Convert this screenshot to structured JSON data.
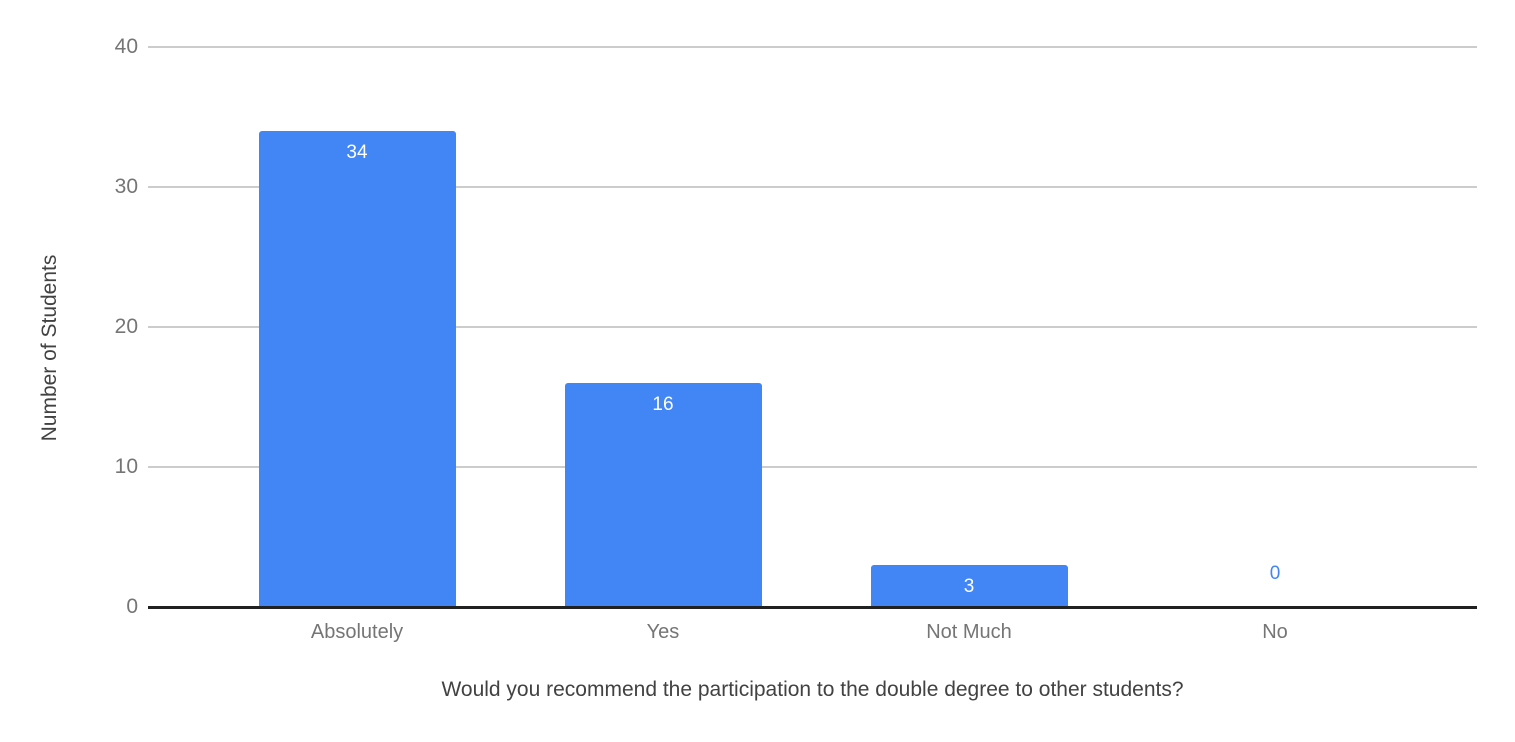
{
  "chart_data": {
    "type": "bar",
    "categories": [
      "Absolutely",
      "Yes",
      "Not Much",
      "No"
    ],
    "values": [
      34,
      16,
      3,
      0
    ],
    "title": "",
    "xlabel": "Would you recommend the participation to the double degree to other students?",
    "ylabel": "Number of Students",
    "y_ticks": [
      0,
      10,
      20,
      30,
      40
    ],
    "ylim": [
      0,
      40
    ],
    "grid": true,
    "legend": "none",
    "colors": {
      "bar": "#4285f4",
      "value_label_inside": "#ffffff",
      "value_label_outside": "#4285f4",
      "gridline": "#cccccc",
      "baseline": "#212121",
      "tick_label": "#757575",
      "category_label": "#757575",
      "axis_title": "#424242",
      "background": "#ffffff"
    }
  }
}
